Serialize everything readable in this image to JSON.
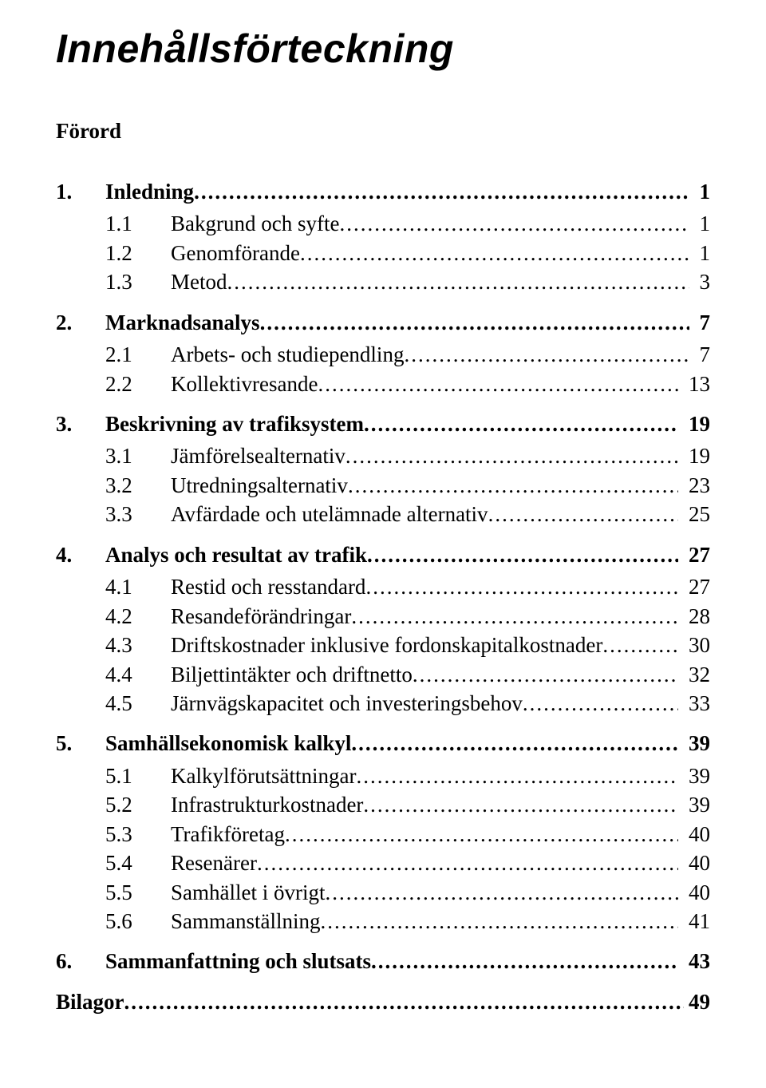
{
  "title": "Innehållsförteckning",
  "forord": "Förord",
  "toc": [
    {
      "lvl": 1,
      "num": "1.",
      "label": "Inledning",
      "page": "1"
    },
    {
      "lvl": 2,
      "num": "1.1",
      "label": "Bakgrund och syfte",
      "page": "1"
    },
    {
      "lvl": 2,
      "num": "1.2",
      "label": "Genomförande",
      "page": "1"
    },
    {
      "lvl": 2,
      "num": "1.3",
      "label": "Metod",
      "page": "3"
    },
    {
      "lvl": 1,
      "num": "2.",
      "label": "Marknadsanalys",
      "page": "7"
    },
    {
      "lvl": 2,
      "num": "2.1",
      "label": "Arbets- och studiependling",
      "page": "7"
    },
    {
      "lvl": 2,
      "num": "2.2",
      "label": "Kollektivresande",
      "page": "13"
    },
    {
      "lvl": 1,
      "num": "3.",
      "label": "Beskrivning av trafiksystem",
      "page": "19"
    },
    {
      "lvl": 2,
      "num": "3.1",
      "label": "Jämförelsealternativ",
      "page": "19"
    },
    {
      "lvl": 2,
      "num": "3.2",
      "label": "Utredningsalternativ",
      "page": "23"
    },
    {
      "lvl": 2,
      "num": "3.3",
      "label": "Avfärdade och utelämnade alternativ",
      "page": "25"
    },
    {
      "lvl": 1,
      "num": "4.",
      "label": "Analys och resultat av trafik",
      "page": "27"
    },
    {
      "lvl": 2,
      "num": "4.1",
      "label": "Restid och resstandard",
      "page": "27"
    },
    {
      "lvl": 2,
      "num": "4.2",
      "label": "Resandeförändringar",
      "page": "28"
    },
    {
      "lvl": 2,
      "num": "4.3",
      "label": "Driftskostnader inklusive fordonskapitalkostnader",
      "page": "30"
    },
    {
      "lvl": 2,
      "num": "4.4",
      "label": "Biljettintäkter och driftnetto",
      "page": "32"
    },
    {
      "lvl": 2,
      "num": "4.5",
      "label": "Järnvägskapacitet och investeringsbehov",
      "page": "33"
    },
    {
      "lvl": 1,
      "num": "5.",
      "label": "Samhällsekonomisk kalkyl",
      "page": "39"
    },
    {
      "lvl": 2,
      "num": "5.1",
      "label": "Kalkylförutsättningar",
      "page": "39"
    },
    {
      "lvl": 2,
      "num": "5.2",
      "label": "Infrastrukturkostnader",
      "page": "39"
    },
    {
      "lvl": 2,
      "num": "5.3",
      "label": "Trafikföretag",
      "page": "40"
    },
    {
      "lvl": 2,
      "num": "5.4",
      "label": "Resenärer",
      "page": "40"
    },
    {
      "lvl": 2,
      "num": "5.5",
      "label": "Samhället i övrigt",
      "page": "40"
    },
    {
      "lvl": 2,
      "num": "5.6",
      "label": "Sammanställning",
      "page": "41"
    },
    {
      "lvl": 1,
      "num": "6.",
      "label": "Sammanfattning och slutsats",
      "page": "43"
    }
  ],
  "bilagor": {
    "label": "Bilagor",
    "page": "49"
  }
}
